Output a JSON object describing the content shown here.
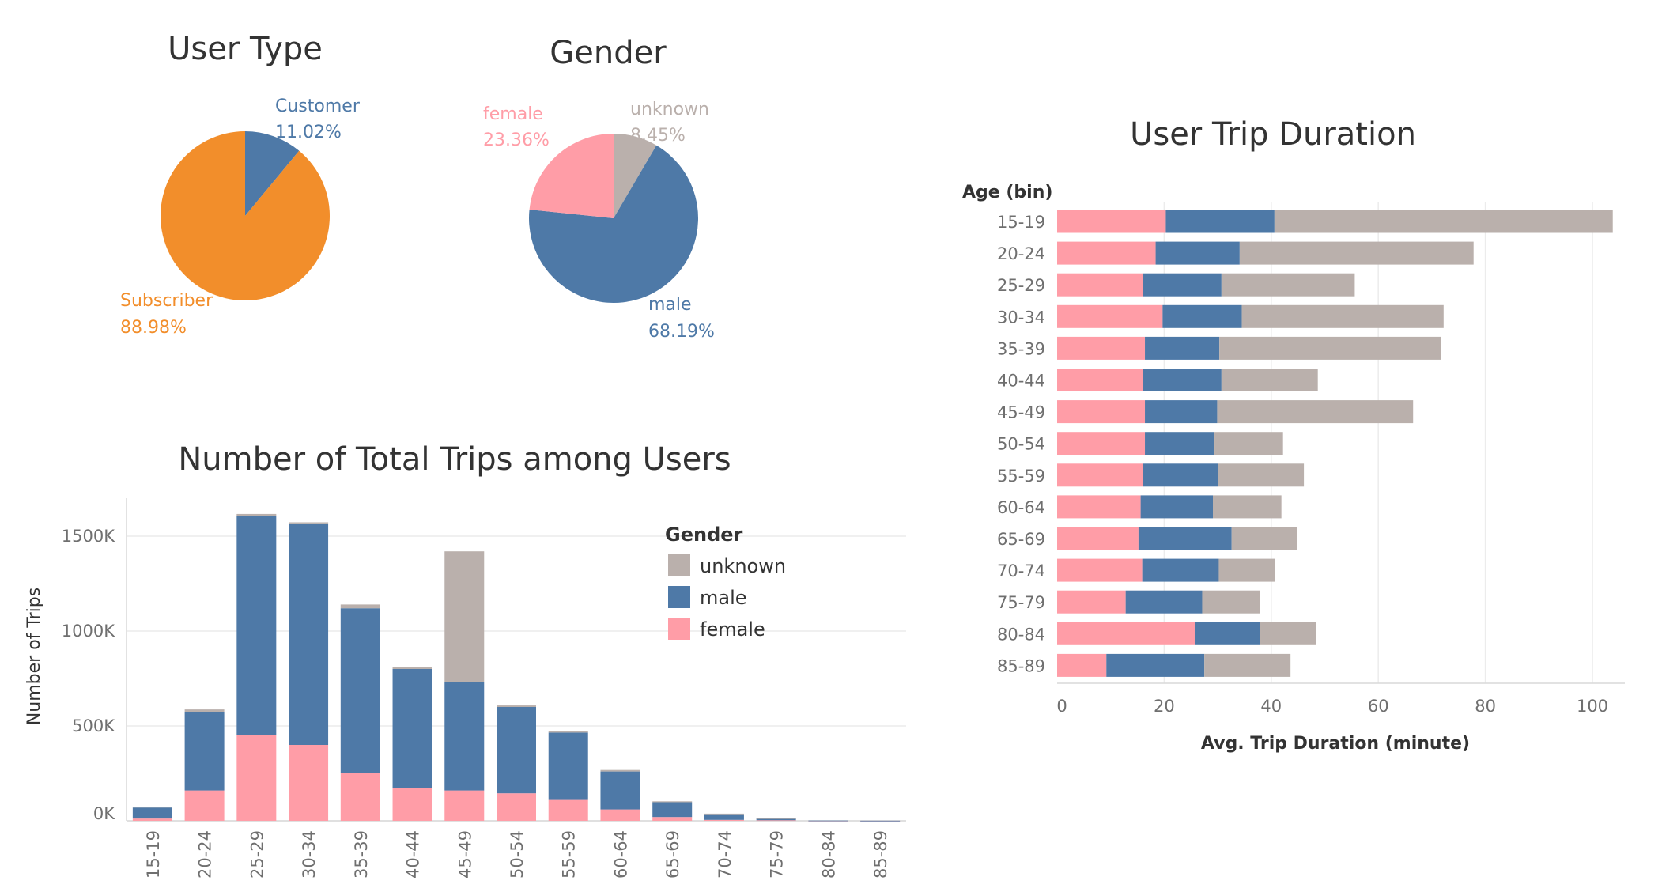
{
  "colors": {
    "subscriber": "#f28e2b",
    "customer": "#4e79a7",
    "female": "#ff9da7",
    "male": "#4e79a7",
    "unknown": "#bab0ac"
  },
  "chart_data": [
    {
      "type": "pie",
      "title": "User Type",
      "slices": [
        {
          "name": "Customer",
          "value": 11.02,
          "label": "11.02%",
          "color": "#4e79a7"
        },
        {
          "name": "Subscriber",
          "value": 88.98,
          "label": "88.98%",
          "color": "#f28e2b"
        }
      ]
    },
    {
      "type": "pie",
      "title": "Gender",
      "slices": [
        {
          "name": "unknown",
          "value": 8.45,
          "label": "8.45%",
          "color": "#bab0ac"
        },
        {
          "name": "male",
          "value": 68.19,
          "label": "68.19%",
          "color": "#4e79a7"
        },
        {
          "name": "female",
          "value": 23.36,
          "label": "23.36%",
          "color": "#ff9da7"
        }
      ]
    },
    {
      "type": "bar",
      "stacked": true,
      "orientation": "vertical",
      "title": "Number of Total Trips among Users",
      "ylabel": "Number of Trips",
      "xlabel": "",
      "ylim": [
        0,
        1700
      ],
      "unit": "K",
      "yticks": [
        0,
        500,
        1000,
        1500
      ],
      "ytick_labels": [
        "0K",
        "500K",
        "1000K",
        "1500K"
      ],
      "categories": [
        "15-19",
        "20-24",
        "25-29",
        "30-34",
        "35-39",
        "40-44",
        "45-49",
        "50-54",
        "55-59",
        "60-64",
        "65-69",
        "70-74",
        "75-79",
        "80-84",
        "85-89"
      ],
      "series": [
        {
          "name": "female",
          "color": "#ff9da7",
          "values": [
            12,
            160,
            450,
            400,
            250,
            175,
            160,
            145,
            110,
            60,
            20,
            5,
            3,
            0.5,
            0.3
          ]
        },
        {
          "name": "male",
          "color": "#4e79a7",
          "values": [
            58,
            415,
            1157,
            1163,
            870,
            625,
            570,
            455,
            355,
            200,
            78,
            30,
            9,
            1,
            0.4
          ]
        },
        {
          "name": "unknown",
          "color": "#bab0ac",
          "values": [
            5,
            12,
            10,
            10,
            20,
            10,
            690,
            8,
            10,
            8,
            5,
            3,
            1,
            0,
            0
          ]
        }
      ],
      "legend": {
        "title": "Gender",
        "items": [
          "unknown",
          "male",
          "female"
        ],
        "placement": "top-right"
      },
      "grid": true
    },
    {
      "type": "bar",
      "stacked": true,
      "orientation": "horizontal",
      "title": "User Trip Duration",
      "ylabel": "Age (bin)",
      "xlabel": "Avg. Trip Duration (minute)",
      "xlim": [
        0,
        105
      ],
      "xticks": [
        0,
        20,
        40,
        60,
        80,
        100
      ],
      "categories": [
        "15-19",
        "20-24",
        "25-29",
        "30-34",
        "35-39",
        "40-44",
        "45-49",
        "50-54",
        "55-59",
        "60-64",
        "65-69",
        "70-74",
        "75-79",
        "80-84",
        "85-89"
      ],
      "series": [
        {
          "name": "female",
          "color": "#ff9da7",
          "values": [
            20.3,
            18.4,
            16.1,
            19.7,
            16.4,
            16.1,
            16.4,
            16.4,
            16.1,
            15.6,
            15.2,
            15.9,
            12.8,
            25.7,
            9.2
          ]
        },
        {
          "name": "male",
          "color": "#4e79a7",
          "values": [
            20.3,
            15.7,
            14.6,
            14.8,
            13.9,
            14.6,
            13.5,
            13.0,
            13.9,
            13.5,
            17.4,
            14.3,
            14.3,
            12.2,
            18.3
          ]
        },
        {
          "name": "unknown",
          "color": "#bab0ac",
          "values": [
            63.2,
            43.7,
            24.9,
            37.7,
            41.4,
            18.0,
            36.6,
            12.8,
            16.1,
            12.8,
            12.2,
            10.5,
            10.8,
            10.5,
            16.1
          ]
        }
      ],
      "grid": true
    }
  ]
}
